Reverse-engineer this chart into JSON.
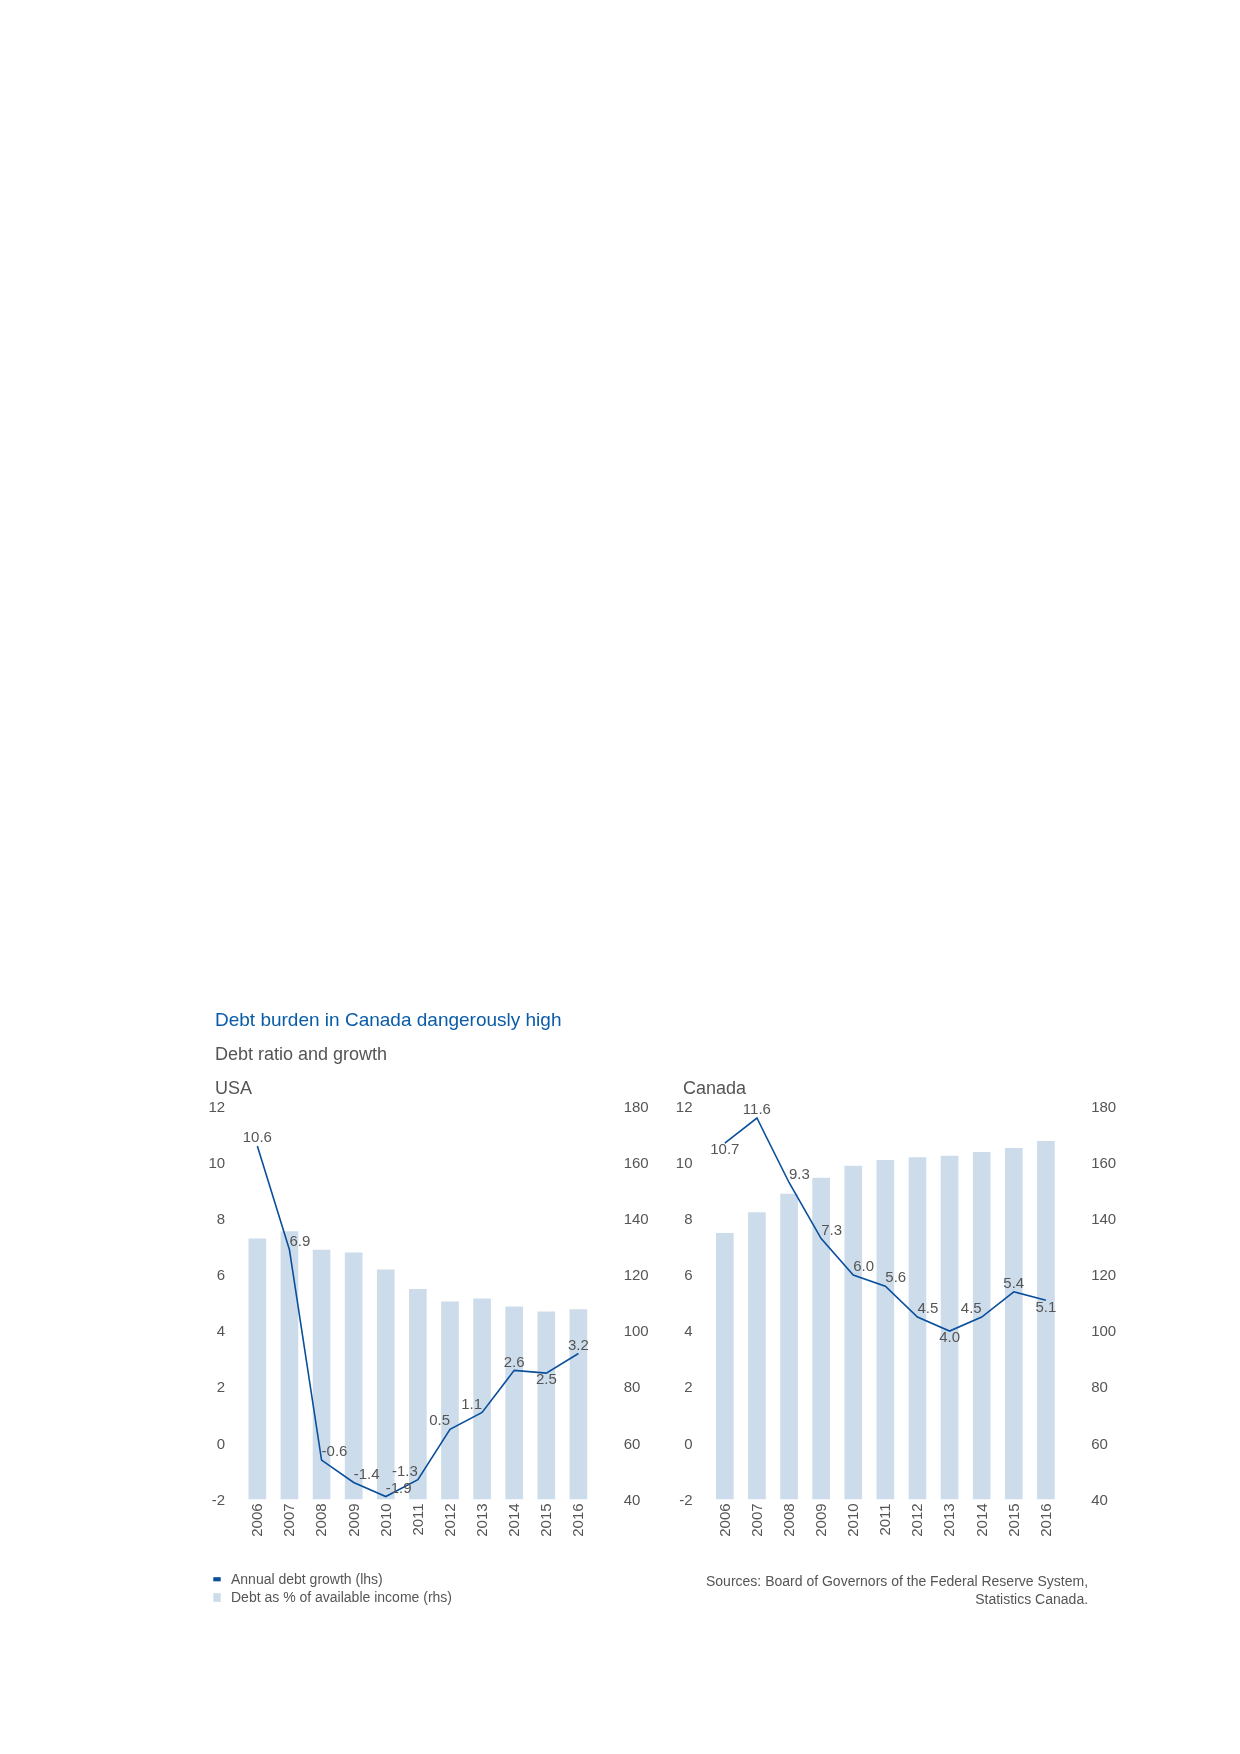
{
  "chart_data": [
    {
      "type": "bar",
      "title": "Debt burden in Canada dangerously high",
      "subtitle": "Debt ratio and growth",
      "annotations": [
        "USA"
      ],
      "categories": [
        "2006",
        "2007",
        "2008",
        "2009",
        "2010",
        "2011",
        "2012",
        "2013",
        "2014",
        "2015",
        "2016"
      ],
      "series": [
        {
          "name": "Annual debt growth (lhs)",
          "type": "line",
          "color": "#0a4f9b",
          "values": [
            10.6,
            6.9,
            -0.6,
            -1.4,
            -1.9,
            -1.3,
            0.5,
            1.1,
            2.6,
            2.5,
            3.2
          ],
          "value_labels": [
            "10.6",
            "6.9",
            "-0.6",
            "-1.4",
            "-1.9",
            "-1.3",
            "0.5",
            "1.1",
            "2.6",
            "2.5",
            "3.2"
          ]
        },
        {
          "name": "Debt as % of available income (rhs)",
          "axis": "y2",
          "color": "#cddcea",
          "values": [
            133,
            135.6,
            129,
            128,
            122,
            115,
            110.6,
            111.6,
            108.8,
            107,
            107.8
          ]
        }
      ],
      "ylim": [
        -2,
        12
      ],
      "yticks": [
        -2,
        0,
        2,
        4,
        6,
        8,
        10,
        12
      ],
      "y2lim": [
        40,
        180
      ],
      "y2ticks": [
        40,
        60,
        80,
        100,
        120,
        140,
        160,
        180
      ],
      "legend": "bottom left"
    },
    {
      "type": "bar",
      "title": "Canada",
      "annotations": [
        "Sources: Board of Governors of the Federal Reserve System,\nStatistics Canada."
      ],
      "categories": [
        "2006",
        "2007",
        "2008",
        "2009",
        "2010",
        "2011",
        "2012",
        "2013",
        "2014",
        "2015",
        "2016"
      ],
      "series": [
        {
          "type": "line",
          "color": "#0a4f9b",
          "values": [
            10.7,
            11.6,
            9.3,
            7.3,
            6.0,
            5.6,
            4.5,
            4.0,
            4.5,
            5.4,
            5.1
          ],
          "value_labels": [
            "10.7",
            "11.6",
            "9.3",
            "7.3",
            "6.0",
            "5.6",
            "4.5",
            "4.0",
            "4.5",
            "5.4",
            "5.1"
          ]
        },
        {
          "axis": "y2",
          "color": "#cddcea",
          "values": [
            135,
            142.4,
            149,
            154.7,
            159,
            161,
            162,
            162.5,
            163.9,
            165.3,
            167.8
          ]
        }
      ],
      "ylim": [
        -2,
        12
      ],
      "yticks": [
        -2,
        0,
        2,
        4,
        6,
        8,
        10,
        12
      ],
      "y2lim": [
        40,
        180
      ],
      "y2ticks": [
        40,
        60,
        80,
        100,
        120,
        140,
        160,
        180
      ]
    }
  ]
}
